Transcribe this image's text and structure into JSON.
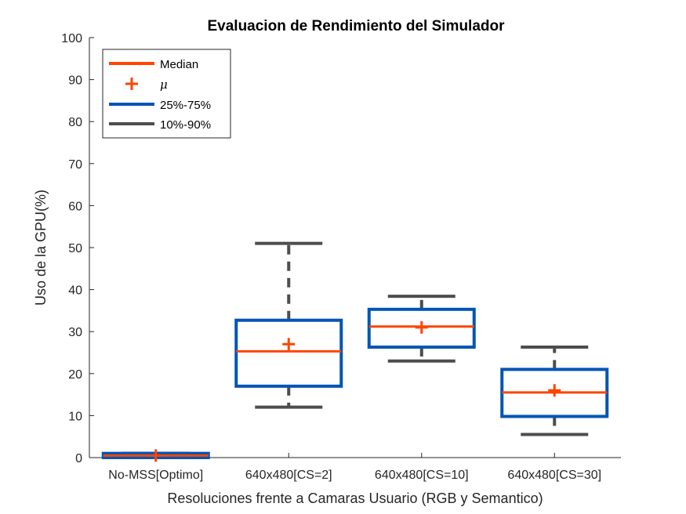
{
  "chart_data": {
    "type": "boxplot",
    "title": "Evaluacion de Rendimiento del Simulador",
    "xlabel": "Resoluciones frente a Camaras Usuario (RGB y Semantico)",
    "ylabel": "Uso de la GPU(%)",
    "ylim": [
      0,
      100
    ],
    "yticks": [
      0,
      10,
      20,
      30,
      40,
      50,
      60,
      70,
      80,
      90,
      100
    ],
    "categories": [
      "No-MSS[Optimo]",
      "640x480[CS=2]",
      "640x480[CS=10]",
      "640x480[CS=30]"
    ],
    "boxes": [
      {
        "p10": 0.0,
        "q1": 0.0,
        "median": 0.5,
        "q3": 1.0,
        "p90": 1.0,
        "mean": 0.5
      },
      {
        "p10": 12.0,
        "q1": 17.0,
        "median": 25.3,
        "q3": 32.7,
        "p90": 51.0,
        "mean": 27.0
      },
      {
        "p10": 23.0,
        "q1": 26.3,
        "median": 31.2,
        "q3": 35.3,
        "p90": 38.4,
        "mean": 31.0
      },
      {
        "p10": 5.5,
        "q1": 9.8,
        "median": 15.5,
        "q3": 21.0,
        "p90": 26.3,
        "mean": 16.0
      }
    ],
    "legend": {
      "position": "top-left",
      "entries": [
        {
          "label": "Median",
          "symbol": "line",
          "color": "#ff4500"
        },
        {
          "label": "μ",
          "symbol": "plus",
          "color": "#ff4500"
        },
        {
          "label": "25%-75%",
          "symbol": "line",
          "color": "#0055b5"
        },
        {
          "label": "10%-90%",
          "symbol": "line",
          "color": "#4d4d4d"
        }
      ]
    },
    "colors": {
      "median": "#ff4500",
      "mean": "#ff4500",
      "box": "#0055b5",
      "whisker": "#4d4d4d"
    },
    "grid": false
  }
}
